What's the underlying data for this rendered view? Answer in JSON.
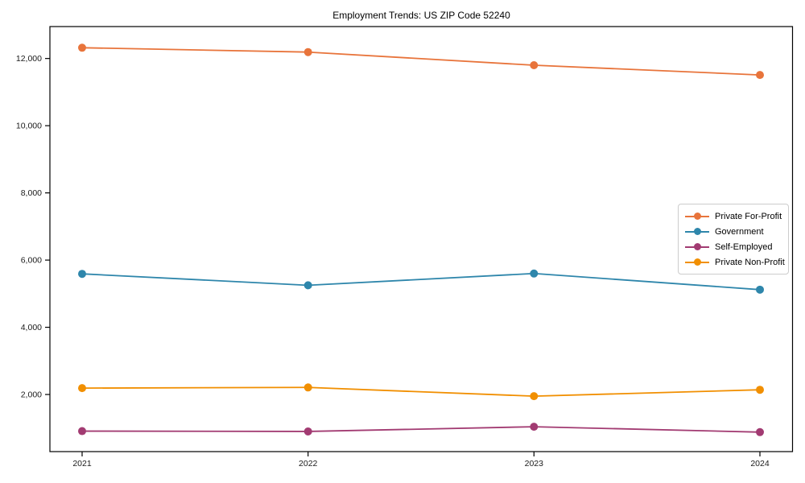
{
  "figure": {
    "background_color": "#ffffff",
    "spine_color": "#000000",
    "tick_label_color": "#1a1a1a"
  },
  "chart_data": {
    "type": "line",
    "title": "Employment Trends: US ZIP Code 52240",
    "xlabel": "",
    "ylabel": "",
    "categories": [
      "2021",
      "2022",
      "2023",
      "2024"
    ],
    "series": [
      {
        "name": "Private For-Profit",
        "color": "#e8743b",
        "values": [
          12320,
          12190,
          11800,
          11510
        ]
      },
      {
        "name": "Government",
        "color": "#2e86ab",
        "values": [
          5590,
          5250,
          5600,
          5120
        ]
      },
      {
        "name": "Self-Employed",
        "color": "#a23b72",
        "values": [
          910,
          900,
          1040,
          880
        ]
      },
      {
        "name": "Private Non-Profit",
        "color": "#f18f01",
        "values": [
          2190,
          2210,
          1950,
          2140
        ]
      }
    ],
    "ylim": [
      300,
      12950
    ],
    "yticks": [
      2000,
      4000,
      6000,
      8000,
      10000,
      12000
    ],
    "ytick_labels": [
      "2,000",
      "4,000",
      "6,000",
      "8,000",
      "10,000",
      "12,000"
    ],
    "grid": false,
    "legend_position": "center right",
    "marker": "circle"
  }
}
